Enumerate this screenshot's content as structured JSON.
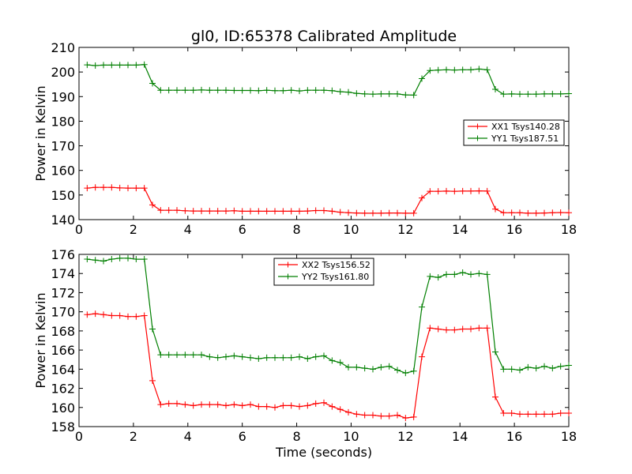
{
  "title": "gl0, ID:65378 Calibrated Amplitude",
  "colors": {
    "red": "#ff0000",
    "green": "#007f00"
  },
  "chart_data": [
    {
      "type": "line",
      "title": "gl0, ID:65378 Calibrated Amplitude",
      "xlabel": "",
      "ylabel": "Power in Kelvin",
      "xlim": [
        0,
        18
      ],
      "ylim": [
        140,
        210
      ],
      "xticks": [
        "0",
        "2",
        "4",
        "6",
        "8",
        "10",
        "12",
        "14",
        "16",
        "18"
      ],
      "yticks": [
        "140",
        "150",
        "160",
        "170",
        "180",
        "190",
        "200",
        "210"
      ],
      "legend_position": "center-right",
      "x": [
        0.3,
        0.6,
        0.9,
        1.2,
        1.5,
        1.8,
        2.1,
        2.4,
        2.7,
        3.0,
        3.3,
        3.6,
        3.9,
        4.2,
        4.5,
        4.8,
        5.1,
        5.4,
        5.7,
        6.0,
        6.3,
        6.6,
        6.9,
        7.2,
        7.5,
        7.8,
        8.1,
        8.4,
        8.7,
        9.0,
        9.3,
        9.6,
        9.9,
        10.2,
        10.5,
        10.8,
        11.1,
        11.4,
        11.7,
        12.0,
        12.3,
        12.6,
        12.9,
        13.2,
        13.5,
        13.8,
        14.1,
        14.4,
        14.7,
        15.0,
        15.3,
        15.6,
        15.9,
        16.2,
        16.5,
        16.8,
        17.1,
        17.4,
        17.7,
        18.0
      ],
      "series": [
        {
          "name": "XX1 Tsys140.28",
          "color": "#ff0000",
          "values": [
            152.8,
            153.1,
            153.1,
            153.1,
            152.9,
            152.8,
            152.8,
            152.8,
            146.0,
            143.8,
            143.8,
            143.8,
            143.6,
            143.5,
            143.5,
            143.5,
            143.5,
            143.5,
            143.6,
            143.4,
            143.4,
            143.4,
            143.4,
            143.4,
            143.4,
            143.4,
            143.4,
            143.5,
            143.7,
            143.7,
            143.4,
            143.0,
            142.8,
            142.7,
            142.6,
            142.6,
            142.6,
            142.7,
            142.7,
            142.6,
            142.6,
            148.8,
            151.5,
            151.5,
            151.6,
            151.5,
            151.6,
            151.6,
            151.7,
            151.6,
            144.3,
            142.8,
            142.8,
            142.8,
            142.6,
            142.6,
            142.7,
            142.8,
            142.9,
            142.8
          ]
        },
        {
          "name": "YY1 Tsys187.51",
          "color": "#007f00",
          "values": [
            202.9,
            202.6,
            202.8,
            202.8,
            202.8,
            202.8,
            202.8,
            203.0,
            195.4,
            192.6,
            192.6,
            192.6,
            192.6,
            192.6,
            192.7,
            192.6,
            192.6,
            192.6,
            192.5,
            192.5,
            192.5,
            192.4,
            192.6,
            192.4,
            192.4,
            192.6,
            192.3,
            192.6,
            192.6,
            192.6,
            192.4,
            192.0,
            191.8,
            191.3,
            191.1,
            191.0,
            191.1,
            191.1,
            191.1,
            190.7,
            190.6,
            197.3,
            200.6,
            200.8,
            200.9,
            200.8,
            200.9,
            200.9,
            201.2,
            200.9,
            193.0,
            191.0,
            191.1,
            191.0,
            191.0,
            191.0,
            191.1,
            191.1,
            191.1,
            191.2
          ]
        }
      ]
    },
    {
      "type": "line",
      "title": "",
      "xlabel": "Time (seconds)",
      "ylabel": "Power in Kelvin",
      "xlim": [
        0,
        18
      ],
      "ylim": [
        158,
        176
      ],
      "xticks": [
        "0",
        "2",
        "4",
        "6",
        "8",
        "10",
        "12",
        "14",
        "16",
        "18"
      ],
      "yticks": [
        "158",
        "160",
        "162",
        "164",
        "166",
        "168",
        "170",
        "172",
        "174",
        "176"
      ],
      "legend_position": "top-center",
      "x": [
        0.3,
        0.6,
        0.9,
        1.2,
        1.5,
        1.8,
        2.1,
        2.4,
        2.7,
        3.0,
        3.3,
        3.6,
        3.9,
        4.2,
        4.5,
        4.8,
        5.1,
        5.4,
        5.7,
        6.0,
        6.3,
        6.6,
        6.9,
        7.2,
        7.5,
        7.8,
        8.1,
        8.4,
        8.7,
        9.0,
        9.3,
        9.6,
        9.9,
        10.2,
        10.5,
        10.8,
        11.1,
        11.4,
        11.7,
        12.0,
        12.3,
        12.6,
        12.9,
        13.2,
        13.5,
        13.8,
        14.1,
        14.4,
        14.7,
        15.0,
        15.3,
        15.6,
        15.9,
        16.2,
        16.5,
        16.8,
        17.1,
        17.4,
        17.7,
        18.0
      ],
      "series": [
        {
          "name": "XX2 Tsys156.52",
          "color": "#ff0000",
          "values": [
            169.7,
            169.8,
            169.7,
            169.6,
            169.6,
            169.5,
            169.5,
            169.6,
            162.8,
            160.3,
            160.4,
            160.4,
            160.3,
            160.2,
            160.3,
            160.3,
            160.3,
            160.2,
            160.3,
            160.2,
            160.3,
            160.1,
            160.1,
            160.0,
            160.2,
            160.2,
            160.1,
            160.2,
            160.4,
            160.5,
            160.1,
            159.8,
            159.5,
            159.3,
            159.2,
            159.2,
            159.1,
            159.1,
            159.2,
            158.9,
            159.0,
            165.3,
            168.3,
            168.2,
            168.1,
            168.1,
            168.2,
            168.2,
            168.3,
            168.3,
            161.1,
            159.4,
            159.4,
            159.3,
            159.3,
            159.3,
            159.3,
            159.3,
            159.4,
            159.4
          ]
        },
        {
          "name": "YY2 Tsys161.80",
          "color": "#007f00",
          "values": [
            175.5,
            175.4,
            175.3,
            175.5,
            175.6,
            175.6,
            175.5,
            175.5,
            168.2,
            165.5,
            165.5,
            165.5,
            165.5,
            165.5,
            165.5,
            165.3,
            165.2,
            165.3,
            165.4,
            165.3,
            165.2,
            165.1,
            165.2,
            165.2,
            165.2,
            165.2,
            165.3,
            165.1,
            165.3,
            165.4,
            164.9,
            164.7,
            164.2,
            164.2,
            164.1,
            164.0,
            164.2,
            164.3,
            163.9,
            163.6,
            163.8,
            170.5,
            173.7,
            173.6,
            173.9,
            173.9,
            174.1,
            173.9,
            174.0,
            173.9,
            165.8,
            164.0,
            164.0,
            163.9,
            164.2,
            164.1,
            164.3,
            164.1,
            164.3,
            164.4
          ]
        }
      ]
    }
  ]
}
